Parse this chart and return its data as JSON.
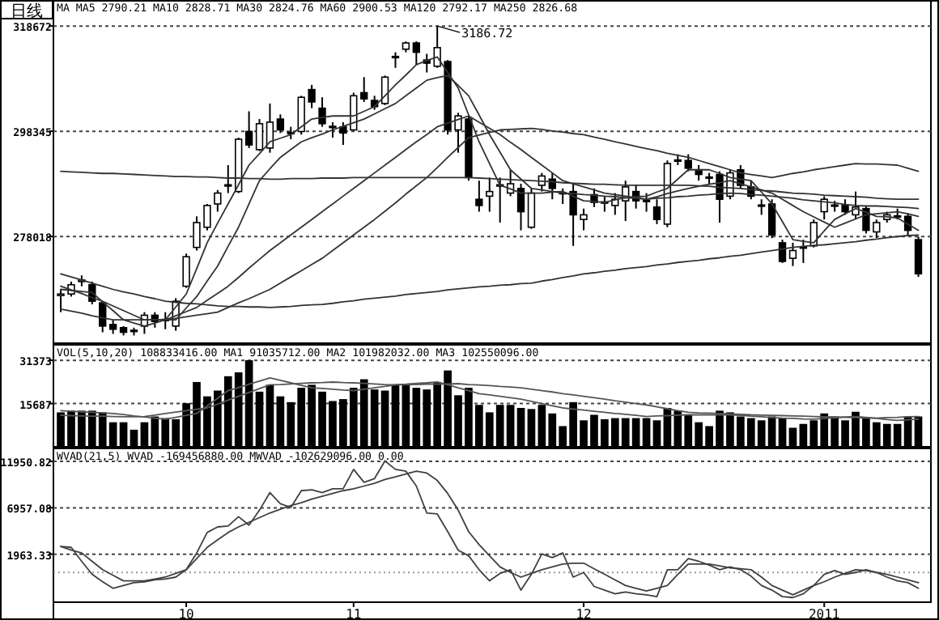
{
  "chart_data": [
    {
      "type": "candlestick",
      "title": "日线",
      "categories": [
        null,
        null,
        null,
        null,
        null,
        null,
        null,
        null,
        null,
        null,
        null,
        null,
        "10",
        null,
        null,
        null,
        null,
        null,
        null,
        null,
        null,
        null,
        null,
        null,
        null,
        null,
        null,
        null,
        "11",
        null,
        null,
        null,
        null,
        null,
        null,
        null,
        null,
        null,
        null,
        null,
        null,
        null,
        null,
        null,
        null,
        null,
        null,
        null,
        null,
        null,
        "12",
        null,
        null,
        null,
        null,
        null,
        null,
        null,
        null,
        null,
        null,
        null,
        null,
        null,
        null,
        null,
        null,
        null,
        null,
        null,
        null,
        null,
        null,
        "2011",
        null,
        null,
        null,
        null,
        null,
        null,
        null,
        null,
        null
      ],
      "ohlc": [
        [
          266600,
          267800,
          263400,
          266900
        ],
        [
          266900,
          269300,
          266400,
          268700
        ],
        [
          269300,
          270500,
          268400,
          269600
        ],
        [
          268700,
          269300,
          264900,
          265500
        ],
        [
          265200,
          265500,
          259500,
          260700
        ],
        [
          261000,
          261900,
          259200,
          260100
        ],
        [
          260400,
          260700,
          258900,
          259500
        ],
        [
          259800,
          260400,
          258900,
          259900
        ],
        [
          260700,
          263400,
          259200,
          262800
        ],
        [
          262800,
          263400,
          260400,
          261600
        ],
        [
          261900,
          263400,
          260100,
          262000
        ],
        [
          260700,
          266100,
          259800,
          265500
        ],
        [
          268400,
          274700,
          268100,
          274100
        ],
        [
          275900,
          281900,
          275300,
          280700
        ],
        [
          279800,
          284300,
          279200,
          284000
        ],
        [
          284300,
          287000,
          282800,
          286400
        ],
        [
          287900,
          291800,
          286400,
          288000
        ],
        [
          286700,
          297100,
          286400,
          296800
        ],
        [
          298300,
          302200,
          295100,
          295700
        ],
        [
          294800,
          300700,
          294500,
          299800
        ],
        [
          295100,
          303700,
          294200,
          300100
        ],
        [
          300700,
          301600,
          298000,
          298600
        ],
        [
          298000,
          299200,
          296800,
          298100
        ],
        [
          298300,
          305200,
          297700,
          304900
        ],
        [
          306400,
          307300,
          302800,
          304000
        ],
        [
          302800,
          304900,
          299200,
          299800
        ],
        [
          299200,
          300100,
          297100,
          299300
        ],
        [
          299200,
          300100,
          295700,
          298000
        ],
        [
          298600,
          305800,
          298500,
          305200
        ],
        [
          305800,
          308800,
          304000,
          304600
        ],
        [
          304300,
          305200,
          302500,
          303100
        ],
        [
          303700,
          309100,
          303400,
          308800
        ],
        [
          312700,
          313600,
          310600,
          312800
        ],
        [
          314200,
          315700,
          313600,
          315400
        ],
        [
          315400,
          315700,
          311200,
          313600
        ],
        [
          312100,
          313300,
          309700,
          311500
        ],
        [
          310900,
          318672,
          310600,
          314500
        ],
        [
          311800,
          312100,
          297700,
          298600
        ],
        [
          298600,
          301900,
          294200,
          301300
        ],
        [
          300700,
          301300,
          288800,
          289400
        ],
        [
          285200,
          288800,
          282800,
          284000
        ],
        [
          285800,
          289400,
          282800,
          286700
        ],
        [
          287900,
          289400,
          280700,
          288000
        ],
        [
          286400,
          290900,
          285800,
          288200
        ],
        [
          287300,
          288200,
          279200,
          282800
        ],
        [
          279800,
          287300,
          279500,
          286400
        ],
        [
          287900,
          290300,
          286700,
          289700
        ],
        [
          289100,
          290300,
          285200,
          287300
        ],
        [
          286400,
          287300,
          284300,
          286500
        ],
        [
          286700,
          288200,
          276200,
          282200
        ],
        [
          281300,
          283400,
          279200,
          282200
        ],
        [
          286100,
          287300,
          283700,
          284600
        ],
        [
          284600,
          285800,
          282800,
          284700
        ],
        [
          284000,
          286400,
          282200,
          285200
        ],
        [
          284900,
          288800,
          281000,
          287600
        ],
        [
          286700,
          287900,
          283400,
          284900
        ],
        [
          284900,
          286400,
          282800,
          285000
        ],
        [
          283700,
          285200,
          280400,
          281300
        ],
        [
          280400,
          292700,
          279800,
          292100
        ],
        [
          292700,
          293900,
          291800,
          292800
        ],
        [
          292700,
          293900,
          290600,
          291200
        ],
        [
          290900,
          291800,
          288800,
          290000
        ],
        [
          289400,
          290300,
          288200,
          289500
        ],
        [
          290000,
          290600,
          280700,
          285200
        ],
        [
          285800,
          290900,
          285200,
          290300
        ],
        [
          290900,
          291800,
          287300,
          287900
        ],
        [
          287600,
          288800,
          285200,
          285800
        ],
        [
          284000,
          285200,
          282200,
          284100
        ],
        [
          284300,
          285200,
          277700,
          278300
        ],
        [
          276800,
          277400,
          272900,
          273200
        ],
        [
          273800,
          276800,
          272300,
          275300
        ],
        [
          275900,
          277400,
          272900,
          276000
        ],
        [
          276200,
          281300,
          275900,
          280700
        ],
        [
          282800,
          285800,
          281300,
          285200
        ],
        [
          284000,
          284900,
          282800,
          284100
        ],
        [
          284000,
          285200,
          282200,
          282800
        ],
        [
          282200,
          286700,
          281300,
          283700
        ],
        [
          283400,
          284000,
          278600,
          279200
        ],
        [
          278900,
          281300,
          277700,
          280700
        ],
        [
          281300,
          282800,
          280700,
          282200
        ],
        [
          281900,
          283400,
          281300,
          282000
        ],
        [
          281900,
          282500,
          278300,
          279200
        ],
        [
          277400,
          278000,
          270200,
          270800
        ]
      ],
      "series": [
        {
          "type": "line",
          "color": "#333333",
          "values": [
            267800,
            267600,
            267400,
            267200,
            265400,
            263700,
            261900,
            261300,
            260700,
            261300,
            261900,
            264400,
            266900,
            271800,
            276800,
            280600,
            284300,
            288000,
            291800,
            294000,
            296300,
            297000,
            297700,
            299200,
            300700,
            301000,
            301300,
            301300,
            301300,
            302200,
            303100,
            305200,
            307300,
            309200,
            311200,
            312000,
            312700,
            309700,
            306700,
            301500,
            296300,
            292100,
            287900,
            287200,
            286400,
            286400,
            286400,
            286600,
            286700,
            285800,
            284900,
            284800,
            284600,
            285100,
            285500,
            285700,
            285800,
            286600,
            287300,
            289100,
            290900,
            290900,
            290900,
            290200,
            289400,
            289100,
            288800,
            286600,
            284300,
            280900,
            277400,
            277100,
            276800,
            279100,
            281300,
            282400,
            283400,
            282700,
            281900,
            281800,
            281600,
            280400,
            279200
          ]
        },
        {
          "type": "line",
          "color": "#333333",
          "values": [
            268400,
            267700,
            267000,
            266200,
            265500,
            264600,
            263700,
            262800,
            261900,
            261900,
            261900,
            261900,
            264200,
            266400,
            269400,
            272300,
            276100,
            279800,
            284300,
            288800,
            291100,
            293300,
            294800,
            296300,
            297100,
            297800,
            298600,
            299300,
            300000,
            300700,
            301700,
            302700,
            303700,
            305200,
            306700,
            308200,
            308700,
            309100,
            307200,
            305200,
            301500,
            297700,
            294300,
            290900,
            289100,
            287300,
            287000,
            286700,
            286400,
            286300,
            286100,
            286000,
            285800,
            285700,
            285500,
            285400,
            285200,
            285700,
            286300,
            286800,
            287300,
            287700,
            288100,
            288400,
            288800,
            288200,
            287600,
            287000,
            286400,
            285200,
            284000,
            282800,
            281800,
            280800,
            279800,
            280600,
            281400,
            282200,
            282400,
            282600,
            282800,
            282400,
            281900
          ]
        },
        {
          "type": "line",
          "color": "#333333",
          "values": [
            264000,
            263600,
            263200,
            262700,
            262300,
            261900,
            261900,
            261900,
            261900,
            261900,
            261900,
            262700,
            263500,
            264300,
            265700,
            267000,
            268400,
            270100,
            271900,
            273600,
            275300,
            276800,
            278300,
            279800,
            281300,
            282800,
            284300,
            285800,
            287300,
            288800,
            290300,
            291800,
            293300,
            294800,
            296300,
            297700,
            299200,
            299900,
            300600,
            301300,
            300100,
            298900,
            297700,
            296200,
            294800,
            293300,
            291800,
            290300,
            288800,
            288200,
            287600,
            287000,
            286400,
            286100,
            285800,
            285500,
            285200,
            285400,
            285500,
            285700,
            285800,
            286000,
            286100,
            286300,
            286400,
            286300,
            286100,
            286000,
            285800,
            285600,
            285400,
            285100,
            284900,
            284700,
            284500,
            284200,
            284000,
            283900,
            283900,
            283800,
            283700,
            283600,
            283400
          ]
        },
        {
          "type": "line",
          "color": "#333333",
          "values": [
            290600,
            290500,
            290400,
            290300,
            290200,
            290200,
            290100,
            290000,
            289900,
            289800,
            289700,
            289600,
            289600,
            289500,
            289500,
            289400,
            289300,
            289300,
            289200,
            289200,
            289100,
            289100,
            289200,
            289200,
            289200,
            289300,
            289300,
            289300,
            289400,
            289400,
            289400,
            289400,
            289400,
            289400,
            289400,
            289400,
            289400,
            289400,
            289400,
            289400,
            289300,
            289200,
            289100,
            289000,
            288900,
            288800,
            288700,
            288600,
            288400,
            288300,
            288200,
            288100,
            288100,
            288000,
            287900,
            287900,
            287900,
            287900,
            287900,
            287900,
            287900,
            287800,
            287700,
            287500,
            287400,
            287300,
            287100,
            286900,
            286800,
            286600,
            286400,
            286300,
            286200,
            286000,
            285900,
            285800,
            285700,
            285600,
            285400,
            285300,
            285200,
            285200,
            285200
          ]
        },
        {
          "type": "line",
          "color": "#333333",
          "values": [
            null,
            null,
            null,
            null,
            null,
            null,
            null,
            null,
            null,
            null,
            261900,
            262200,
            262500,
            262800,
            263100,
            263400,
            264300,
            265200,
            266000,
            266900,
            267800,
            269000,
            270200,
            271400,
            272600,
            273800,
            275300,
            276800,
            278300,
            279800,
            281300,
            282900,
            284500,
            286200,
            287800,
            289400,
            291300,
            293300,
            295200,
            297100,
            297600,
            298100,
            298600,
            298700,
            298800,
            298900,
            298700,
            298400,
            298200,
            297900,
            297700,
            297200,
            296800,
            296300,
            295900,
            295400,
            295000,
            294600,
            294100,
            293700,
            293300,
            292700,
            292100,
            291500,
            290900,
            290300,
            290000,
            289700,
            289400,
            289800,
            290200,
            290500,
            290900,
            291200,
            291500,
            291800,
            292100,
            292000,
            292000,
            291900,
            291800,
            291200,
            290600
          ]
        },
        {
          "type": "line",
          "color": "#333333",
          "values": [
            270800,
            270200,
            269600,
            269000,
            268400,
            267800,
            267300,
            266900,
            266400,
            266000,
            265500,
            265300,
            265100,
            265000,
            264800,
            264600,
            264500,
            264500,
            264400,
            264400,
            264300,
            264400,
            264500,
            264700,
            264800,
            264900,
            265100,
            265400,
            265600,
            265900,
            266100,
            266300,
            266500,
            266800,
            267000,
            267200,
            267400,
            267700,
            267900,
            268100,
            268300,
            268400,
            268600,
            268700,
            268900,
            269000,
            269400,
            269700,
            270100,
            270400,
            270800,
            271000,
            271300,
            271500,
            271800,
            272000,
            272200,
            272500,
            272700,
            273000,
            273200,
            273400,
            273700,
            273900,
            274200,
            274400,
            274700,
            275000,
            275300,
            275600,
            275900,
            276100,
            276300,
            276400,
            276600,
            276800,
            277000,
            277300,
            277500,
            277800,
            278000,
            278200,
            278300
          ]
        }
      ],
      "ylim": [
        257400,
        323700
      ],
      "yticks": [
        278018,
        298345,
        318672
      ],
      "grid": "y",
      "tick_labels": "y",
      "annotations": [
        "MA MA5 2790.21 MA10 2828.71 MA30 2824.76 MA60 2900.53 MA120 2792.17 MA250 2826.68",
        "3186.72"
      ]
    },
    {
      "type": "bar",
      "color": "#000000",
      "categories": [
        null,
        null,
        null,
        null,
        null,
        null,
        null,
        null,
        null,
        null,
        null,
        null,
        "10",
        null,
        null,
        null,
        null,
        null,
        null,
        null,
        null,
        null,
        null,
        null,
        null,
        null,
        null,
        null,
        "11",
        null,
        null,
        null,
        null,
        null,
        null,
        null,
        null,
        null,
        null,
        null,
        null,
        null,
        null,
        null,
        null,
        null,
        null,
        null,
        null,
        null,
        "12",
        null,
        null,
        null,
        null,
        null,
        null,
        null,
        null,
        null,
        null,
        null,
        null,
        null,
        null,
        null,
        null,
        null,
        null,
        null,
        null,
        null,
        null,
        "2011",
        null,
        null,
        null,
        null,
        null,
        null,
        null,
        null,
        null
      ],
      "values": [
        12500,
        13100,
        13100,
        13100,
        12500,
        8900,
        8900,
        6200,
        8900,
        11000,
        10400,
        10000,
        15800,
        23500,
        18300,
        20400,
        25600,
        27000,
        31400,
        20000,
        22500,
        18300,
        16200,
        21400,
        22500,
        20000,
        16600,
        17300,
        21400,
        24500,
        20800,
        20400,
        22500,
        22500,
        21400,
        20800,
        23500,
        27700,
        18700,
        21400,
        15200,
        12500,
        15200,
        15200,
        14100,
        13700,
        15200,
        12100,
        7500,
        16200,
        9600,
        11600,
        10000,
        10400,
        10400,
        10400,
        10400,
        9600,
        14100,
        13100,
        11600,
        8900,
        7500,
        13100,
        12500,
        11000,
        10400,
        9600,
        11000,
        10400,
        6900,
        8300,
        9600,
        12100,
        11000,
        9600,
        12700,
        10400,
        8900,
        8300,
        8300,
        11000,
        11000
      ],
      "series": [
        {
          "type": "line",
          "color": "#555555",
          "values": [
            13100,
            12900,
            12700,
            12500,
            12300,
            12100,
            11700,
            11200,
            10800,
            10400,
            10000,
            10700,
            11400,
            12100,
            14800,
            17600,
            20400,
            21500,
            22700,
            23800,
            25000,
            24100,
            23200,
            22300,
            21400,
            21200,
            20900,
            20600,
            20400,
            20900,
            21400,
            21900,
            22500,
            22700,
            23000,
            23200,
            23500,
            22500,
            21400,
            20400,
            19300,
            18800,
            18300,
            17800,
            17300,
            16500,
            15700,
            14900,
            14100,
            13700,
            13300,
            12900,
            12500,
            12100,
            11800,
            11400,
            11000,
            11200,
            11300,
            11500,
            11600,
            11600,
            11600,
            11600,
            11600,
            11400,
            11100,
            10900,
            10600,
            10400,
            10300,
            10100,
            10000,
            10300,
            10500,
            10800,
            11000,
            10700,
            10300,
            9900,
            9600,
            9800,
            10000
          ]
        },
        {
          "type": "line",
          "color": "#555555",
          "values": [
            11400,
            11300,
            11200,
            11100,
            11100,
            11000,
            10900,
            10900,
            11000,
            11500,
            12100,
            12600,
            13100,
            13600,
            14100,
            15500,
            16900,
            18300,
            19700,
            21100,
            22500,
            22600,
            22800,
            23000,
            23200,
            23300,
            23500,
            23300,
            23200,
            23000,
            22800,
            22600,
            22500,
            22500,
            22600,
            22700,
            22700,
            22800,
            22900,
            22600,
            22400,
            22200,
            21900,
            21700,
            21400,
            20900,
            20400,
            19900,
            19300,
            18800,
            18300,
            17800,
            17300,
            16700,
            16200,
            15700,
            15200,
            14500,
            13800,
            13100,
            12500,
            12300,
            12200,
            12100,
            11900,
            11800,
            11600,
            11500,
            11400,
            11300,
            11200,
            11100,
            11000,
            10900,
            10800,
            10700,
            10600,
            10500,
            10400,
            10600,
            10700,
            10900,
            11000
          ]
        }
      ],
      "ylim": [
        0,
        37000
      ],
      "yticks": [
        15687,
        31373
      ],
      "grid": "y",
      "tick_labels": "y",
      "annotations": [
        "VOL(5,10,20) 108833416.00 MA1 91035712.00 MA2 101982032.00 MA3 102550096.00"
      ]
    },
    {
      "type": "line",
      "categories": [
        null,
        null,
        null,
        null,
        null,
        null,
        null,
        null,
        null,
        null,
        null,
        null,
        "10",
        null,
        null,
        null,
        null,
        null,
        null,
        null,
        null,
        null,
        null,
        null,
        null,
        null,
        null,
        null,
        "11",
        null,
        null,
        null,
        null,
        null,
        null,
        null,
        null,
        null,
        null,
        null,
        null,
        null,
        null,
        null,
        null,
        null,
        null,
        null,
        null,
        null,
        "12",
        null,
        null,
        null,
        null,
        null,
        null,
        null,
        null,
        null,
        null,
        null,
        null,
        null,
        null,
        null,
        null,
        null,
        null,
        null,
        null,
        null,
        null,
        "2011",
        null,
        null,
        null,
        null,
        null,
        null,
        null,
        null,
        null
      ],
      "series": [
        {
          "type": "line",
          "color": "#404040",
          "values": [
            2800,
            2700,
            1200,
            -200,
            -1000,
            -1700,
            -1400,
            -1100,
            -1000,
            -800,
            -700,
            -500,
            300,
            2100,
            4300,
            4900,
            5000,
            6000,
            5100,
            6700,
            8600,
            7400,
            7000,
            8800,
            8900,
            8600,
            9000,
            9000,
            11100,
            9700,
            10100,
            12000,
            11100,
            10900,
            9300,
            6400,
            6300,
            4400,
            2400,
            1800,
            300,
            -900,
            -100,
            300,
            -1900,
            -200,
            2000,
            1600,
            2100,
            -500,
            0,
            -1500,
            -1900,
            -2300,
            -2100,
            -2300,
            -2400,
            -2600,
            300,
            300,
            1500,
            1200,
            800,
            300,
            600,
            300,
            -400,
            -1400,
            -1900,
            -2600,
            -2700,
            -2300,
            -1400,
            -200,
            200,
            -200,
            0,
            300,
            0,
            -500,
            -900,
            -1100,
            -1700
          ]
        },
        {
          "type": "line",
          "color": "#404040",
          "values": [
            2800,
            2400,
            2100,
            1200,
            300,
            -300,
            -900,
            -900,
            -900,
            -700,
            -500,
            -100,
            300,
            1500,
            2700,
            3500,
            4300,
            4900,
            5400,
            5900,
            6400,
            6800,
            7200,
            7500,
            7900,
            8200,
            8500,
            8800,
            9000,
            9300,
            9600,
            10000,
            10300,
            10600,
            10900,
            10700,
            9900,
            8500,
            6700,
            4400,
            3000,
            1800,
            600,
            0,
            -500,
            -100,
            300,
            600,
            900,
            1000,
            1000,
            400,
            -200,
            -800,
            -1400,
            -1700,
            -2000,
            -1700,
            -1400,
            -200,
            900,
            900,
            900,
            700,
            500,
            400,
            300,
            -500,
            -1400,
            -1900,
            -2400,
            -1900,
            -1400,
            -1000,
            -500,
            -100,
            300,
            200,
            0,
            -200,
            -500,
            -800,
            -1100
          ]
        }
      ],
      "ylim": [
        -3200,
        13350
      ],
      "yticks": [
        1963.33,
        6957.08,
        11950.82
      ],
      "grid": "y",
      "ref_lines": [
        {
          "axis": "y",
          "value": 0,
          "color": "#999999",
          "line_style": "dotted"
        }
      ],
      "annotations": [
        "WVAD(21,5) WVAD -169456880.00 MWVAD -102629096.00  0.00"
      ]
    }
  ]
}
